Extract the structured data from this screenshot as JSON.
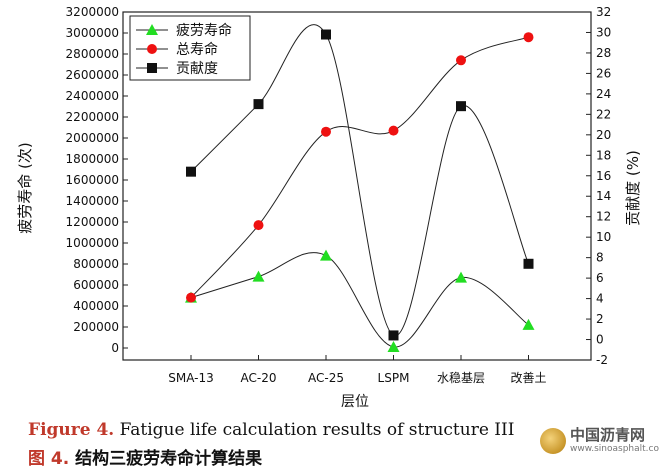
{
  "chart_data": {
    "type": "line",
    "categories": [
      "SMA-13",
      "AC-20",
      "AC-25",
      "LSPM",
      "水稳基层",
      "改善土"
    ],
    "xlabel": "层位",
    "ylabel_left": "疲劳寿命 (次)",
    "ylabel_right": "贡献度 (%)",
    "ylim_left": [
      0,
      3200000
    ],
    "yticks_left": [
      "0",
      "200000",
      "400000",
      "600000",
      "800000",
      "1000000",
      "1200000",
      "1400000",
      "1600000",
      "1800000",
      "2000000",
      "2200000",
      "2400000",
      "2600000",
      "2800000",
      "3000000",
      "3200000"
    ],
    "ylim_right": [
      -2,
      32
    ],
    "yticks_right": [
      "-2",
      "0",
      "2",
      "4",
      "6",
      "8",
      "10",
      "12",
      "14",
      "16",
      "18",
      "20",
      "22",
      "24",
      "26",
      "28",
      "30",
      "32"
    ],
    "series": [
      {
        "name": "疲劳寿命",
        "axis": "left",
        "color": "#22dd22",
        "marker": "triangle",
        "values": [
          480000,
          680000,
          880000,
          10000,
          670000,
          220000
        ]
      },
      {
        "name": "总寿命",
        "axis": "left",
        "color": "#ee1111",
        "marker": "circle",
        "values": [
          480000,
          1170000,
          2060000,
          2070000,
          2740000,
          2960000
        ]
      },
      {
        "name": "贡献度",
        "axis": "right",
        "color": "#111111",
        "marker": "square",
        "values": [
          16.4,
          23.0,
          29.8,
          0.4,
          22.8,
          7.4
        ]
      }
    ]
  },
  "caption": {
    "en_fig": "Figure 4.",
    "en_text": "Fatigue life calculation results of structure III",
    "zh_fig": "图 4.",
    "zh_text": "结构三疲劳寿命计算结果"
  },
  "watermark": {
    "name": "中国沥青网",
    "url": "www.sinoasphalt.com"
  }
}
